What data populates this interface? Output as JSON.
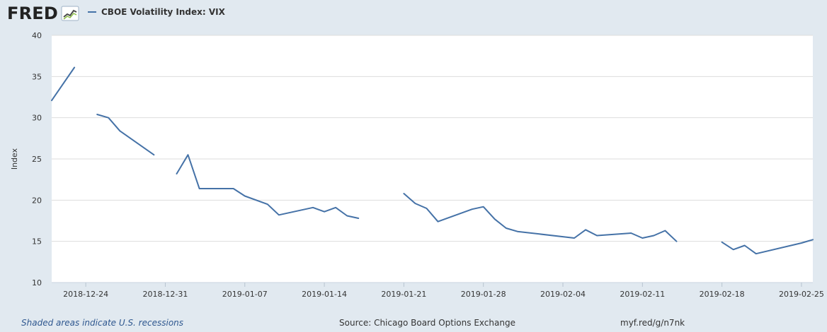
{
  "header": {
    "logo_text": "FRED",
    "logo_icon": "fred-chart-icon"
  },
  "legend": {
    "series_name": "CBOE Volatility Index: VIX"
  },
  "chart_data": {
    "type": "line",
    "title": "",
    "xlabel": "",
    "ylabel": "Index",
    "ylim": [
      10,
      40
    ],
    "xlim": [
      "2018-12-21",
      "2019-02-26"
    ],
    "y_ticks": [
      10,
      15,
      20,
      25,
      30,
      35,
      40
    ],
    "x_ticks": [
      "2018-12-24",
      "2018-12-31",
      "2019-01-07",
      "2019-01-14",
      "2019-01-21",
      "2019-01-28",
      "2019-02-04",
      "2019-02-11",
      "2019-02-18",
      "2019-02-25"
    ],
    "grid": true,
    "legend_position": "top-left",
    "series": [
      {
        "color": "#4572a7",
        "segments": [
          [
            {
              "x": "2018-12-21",
              "y": 32.1
            },
            {
              "x": "2018-12-23",
              "y": 36.1
            }
          ],
          [
            {
              "x": "2018-12-25",
              "y": 30.4
            },
            {
              "x": "2018-12-26",
              "y": 30.0
            },
            {
              "x": "2018-12-27",
              "y": 28.4
            },
            {
              "x": "2018-12-30",
              "y": 25.5
            }
          ],
          [
            {
              "x": "2019-01-01",
              "y": 23.2
            },
            {
              "x": "2019-01-02",
              "y": 25.5
            },
            {
              "x": "2019-01-03",
              "y": 21.4
            },
            {
              "x": "2019-01-06",
              "y": 21.4
            },
            {
              "x": "2019-01-07",
              "y": 20.5
            },
            {
              "x": "2019-01-09",
              "y": 19.5
            },
            {
              "x": "2019-01-10",
              "y": 18.2
            },
            {
              "x": "2019-01-13",
              "y": 19.1
            },
            {
              "x": "2019-01-14",
              "y": 18.6
            },
            {
              "x": "2019-01-15",
              "y": 19.1
            },
            {
              "x": "2019-01-16",
              "y": 18.1
            },
            {
              "x": "2019-01-17",
              "y": 17.8
            }
          ],
          [
            {
              "x": "2019-01-21",
              "y": 20.8
            },
            {
              "x": "2019-01-22",
              "y": 19.6
            },
            {
              "x": "2019-01-23",
              "y": 19.0
            },
            {
              "x": "2019-01-24",
              "y": 17.4
            },
            {
              "x": "2019-01-27",
              "y": 18.9
            },
            {
              "x": "2019-01-28",
              "y": 19.2
            },
            {
              "x": "2019-01-29",
              "y": 17.7
            },
            {
              "x": "2019-01-30",
              "y": 16.6
            },
            {
              "x": "2019-01-31",
              "y": 16.2
            },
            {
              "x": "2019-02-05",
              "y": 15.4
            },
            {
              "x": "2019-02-06",
              "y": 16.4
            },
            {
              "x": "2019-02-07",
              "y": 15.7
            },
            {
              "x": "2019-02-10",
              "y": 16.0
            },
            {
              "x": "2019-02-11",
              "y": 15.4
            },
            {
              "x": "2019-02-12",
              "y": 15.7
            },
            {
              "x": "2019-02-13",
              "y": 16.3
            },
            {
              "x": "2019-02-14",
              "y": 15.0
            }
          ],
          [
            {
              "x": "2019-02-18",
              "y": 14.9
            },
            {
              "x": "2019-02-19",
              "y": 14.0
            },
            {
              "x": "2019-02-20",
              "y": 14.5
            },
            {
              "x": "2019-02-21",
              "y": 13.5
            },
            {
              "x": "2019-02-25",
              "y": 14.8
            },
            {
              "x": "2019-02-26",
              "y": 15.2
            }
          ]
        ]
      }
    ]
  },
  "footer": {
    "recessions_note": "Shaded areas indicate U.S. recessions",
    "source": "Source: Chicago Board Options Exchange",
    "url": "myf.red/g/n7nk"
  }
}
